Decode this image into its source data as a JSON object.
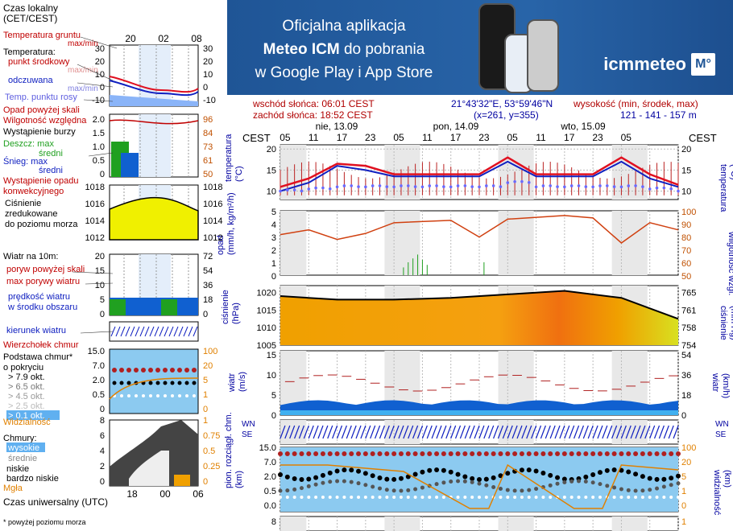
{
  "banner": {
    "line1": "Oficjalna aplikacja",
    "line2_bold": "Meteo ICM",
    "line2_rest": " do pobrania",
    "line3": "w Google Play i App Store",
    "logo": "icmmeteo",
    "logo_badge": "M°"
  },
  "info": {
    "sunrise": "wschód słońca: 06:01 CEST",
    "sunset": "zachód słońca: 18:52 CEST",
    "coords": "21°43'32\"E, 53°59'46\"N",
    "grid": "(x=261,  y=355)",
    "height_label": "wysokość (min, środek, max)",
    "height_values": "121 - 141 - 157 m"
  },
  "time_axis": {
    "tz": "CEST",
    "days": [
      "nie, 13.09",
      "pon, 14.09",
      "wto, 15.09"
    ],
    "hours": [
      "05",
      "11",
      "17",
      "23",
      "05",
      "11",
      "17",
      "23",
      "05",
      "11",
      "17",
      "23",
      "05"
    ]
  },
  "legend": {
    "timezone_label": "Czas lokalny\n(CET/CEST)",
    "top_hours": [
      "20",
      "02",
      "08"
    ],
    "temp_ground": "Temperatura gruntu",
    "temp_ground_sub": "max/min",
    "temp_title": "Temperatura:",
    "temp_mid": "punkt środkowy",
    "temp_mid_sub": "max/min",
    "feels": "odczuwana",
    "feels_sub": "max/min",
    "dew": "Temp. punktu rosy",
    "temp_ticks_left": [
      "30",
      "20",
      "10",
      "0",
      "-10"
    ],
    "temp_ticks_right": [
      "30",
      "20",
      "10",
      "0",
      "-10"
    ],
    "precip_above": "Opad powyżej skali",
    "humidity": "Wilgotność względna",
    "storm": "Wystąpienie burzy",
    "rain_max": "Deszcz: max",
    "rain_mean": "średni",
    "snow_max": "Śnieg:  max",
    "snow_mean": "średni",
    "conv": "Wystąpienie opadu\nkonwekcyjnego",
    "precip_ticks_left": [
      "2.0",
      "1.5",
      "1.0",
      "0.5",
      "0"
    ],
    "precip_ticks_right": [
      "96",
      "84",
      "73",
      "61",
      "50"
    ],
    "pressure": "Ciśnienie\nzredukowane\ndo poziomu morza",
    "pressure_ticks": [
      "1018",
      "1016",
      "1014",
      "1012"
    ],
    "wind_title": "Wiatr na 10m:",
    "gust_above": "poryw powyżej skali",
    "gust_max": "max porywy wiatru",
    "wind_mean": "prędkość wiatru\nw środku obszaru",
    "wind_ticks_left": [
      "20",
      "15",
      "10",
      "5",
      "0"
    ],
    "wind_ticks_right": [
      "72",
      "54",
      "36",
      "18",
      "0"
    ],
    "wind_dir": "kierunek wiatru",
    "cloud_top": "Wierzchołek chmur",
    "cloud_base": "Podstawa chmur*\no pokryciu",
    "okt": [
      "> 7.9 okt.",
      "> 6.5 okt.",
      "> 4.5 okt.",
      "> 2.5 okt.",
      "> 0.1 okt."
    ],
    "visibility": "Widzialność",
    "cb_ticks_left": [
      "15.0",
      "7.0",
      "2.0",
      "0.5",
      "0"
    ],
    "cb_ticks_right": [
      "100",
      "20",
      "5",
      "1",
      "0"
    ],
    "clouds_title": "Chmury:",
    "cl_high": "wysokie",
    "cl_mid": "średnie",
    "cl_low": "niskie",
    "cl_vlow": "bardzo niskie",
    "fog": "Mgła",
    "cl_ticks_left": [
      "8",
      "6",
      "4",
      "2",
      "0"
    ],
    "cl_ticks_right": [
      "1",
      "0.75",
      "0.5",
      "0.25",
      "0"
    ],
    "utc": "Czas uniwersalny (UTC)",
    "utc_hours": [
      "18",
      "00",
      "06"
    ],
    "footnote": "* powyżej poziomu morza"
  },
  "panels": {
    "temp": {
      "ylabel_left": "temperatura\n(°C)",
      "ylabel_right": "(°C)\ntemperatura",
      "ticks": [
        "20",
        "15",
        "10"
      ]
    },
    "precip": {
      "ylabel_left": "opad\n(mm/h, kg/m²/h)",
      "ylabel_right": "(%)\nwilgotność wzgl.",
      "ticks_left": [
        "5",
        "4",
        "3",
        "2",
        "1",
        "0"
      ],
      "ticks_right": [
        "100",
        "90",
        "80",
        "70",
        "60",
        "50"
      ]
    },
    "pressure": {
      "ylabel_left": "ciśnienie\n(hPa)",
      "ylabel_right": "(mm Hg)\nciśnienie",
      "ticks_left": [
        "1020",
        "1015",
        "1010",
        "1005"
      ],
      "ticks_right": [
        "765",
        "761",
        "758",
        "754"
      ]
    },
    "wind": {
      "ylabel_left": "wiatr\n(m/s)",
      "ylabel_right": "(km/h)\nwiatr",
      "ticks_left": [
        "15",
        "10",
        "5",
        "0"
      ],
      "ticks_right": [
        "54",
        "36",
        "18",
        "0"
      ]
    },
    "clouds": {
      "ylabel_left": "pion. rozciągł. chm.\n(km)",
      "ylabel_right": "(km)\nwidzialność",
      "ticks_left": [
        "15.0",
        "7.0",
        "2.0",
        "0.5",
        "0.0"
      ],
      "ticks_right": [
        "100",
        "20",
        "5",
        "1",
        "0"
      ],
      "wind_dir_glyph": "WN\nSE"
    },
    "cloudcover": {
      "ticks_left": [
        "8"
      ],
      "ticks_right": [
        "1"
      ]
    }
  },
  "chart_data": [
    {
      "type": "line",
      "title": "temperatura",
      "x": [
        0,
        6,
        12,
        18,
        24,
        30,
        36,
        42,
        48,
        54,
        60,
        66,
        72,
        78,
        84
      ],
      "series": [
        {
          "name": "punkt środkowy",
          "values": [
            11,
            13,
            16.5,
            16,
            14,
            14,
            14,
            14,
            18,
            14,
            14,
            14,
            18,
            14,
            11.5
          ]
        },
        {
          "name": "odczuwana",
          "values": [
            10,
            12,
            16,
            15,
            13.5,
            13.5,
            13.5,
            13.5,
            17,
            13.5,
            13.5,
            13.5,
            17,
            13,
            11
          ]
        },
        {
          "name": "Temp. punktu rosy",
          "values": [
            10,
            10.5,
            11,
            11,
            11,
            11,
            11,
            11,
            12,
            11,
            11,
            11,
            11,
            10.5,
            10
          ]
        }
      ],
      "ylim": [
        8,
        21
      ]
    },
    {
      "type": "line",
      "title": "ciśnienie",
      "x": [
        0,
        12,
        24,
        36,
        48,
        60,
        72,
        84
      ],
      "values": [
        1019,
        1018,
        1018,
        1018.5,
        1019.5,
        1020.5,
        1018.5,
        1012.5
      ],
      "ylim": [
        1005,
        1022
      ]
    }
  ]
}
